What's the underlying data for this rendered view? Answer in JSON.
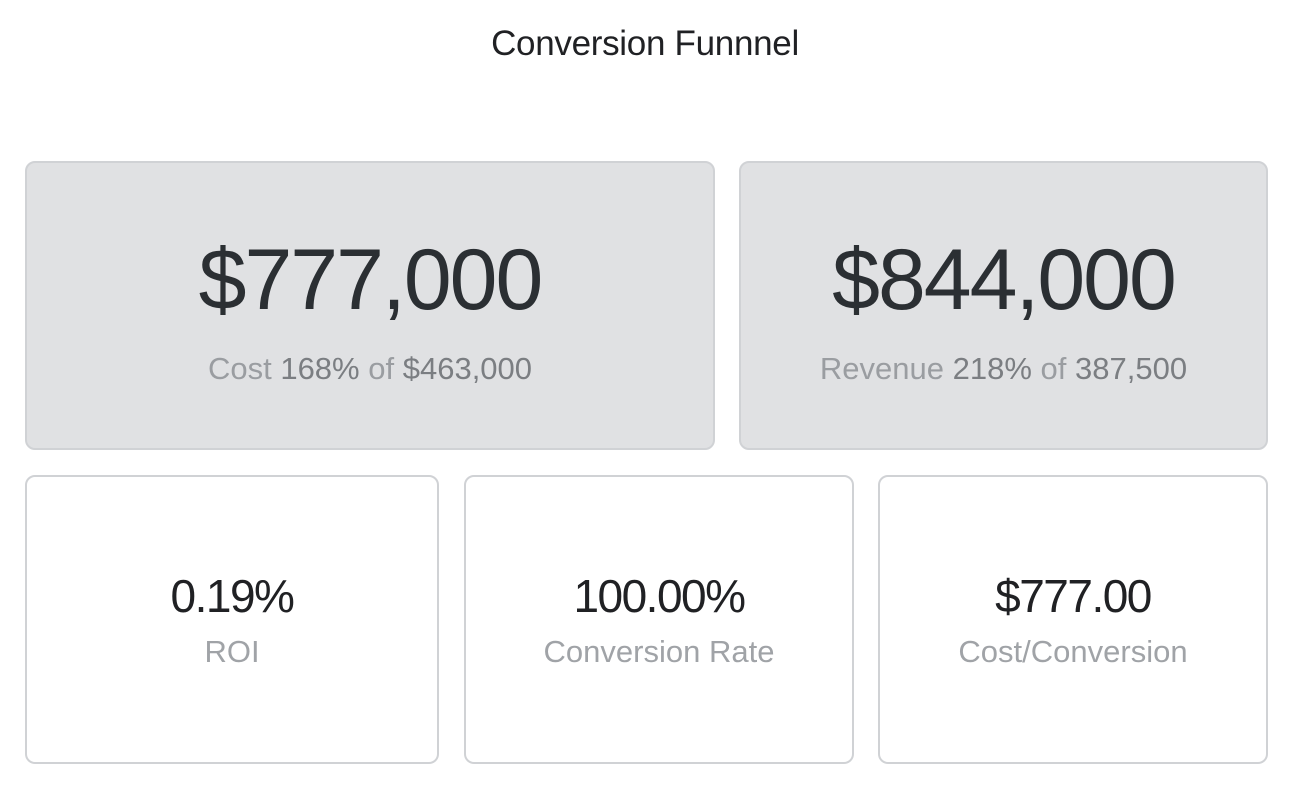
{
  "header": {
    "title": "Conversion Funnnel"
  },
  "cards": {
    "cost": {
      "value": "$777,000",
      "label": "Cost",
      "percent": "168%",
      "of_word": "of",
      "target": "$463,000"
    },
    "revenue": {
      "value": "$844,000",
      "label": "Revenue",
      "percent": "218%",
      "of_word": "of",
      "target": "387,500"
    },
    "roi": {
      "value": "0.19%",
      "label": "ROI"
    },
    "conversion_rate": {
      "value": "100.00%",
      "label": "Conversion Rate"
    },
    "cost_per_conversion": {
      "value": "$777.00",
      "label": "Cost/Conversion"
    }
  },
  "colors": {
    "hero_card_bg": "#e0e1e3",
    "card_border": "#d0d2d5",
    "value_text": "#2b2f33",
    "muted_text": "#9a9da1"
  }
}
